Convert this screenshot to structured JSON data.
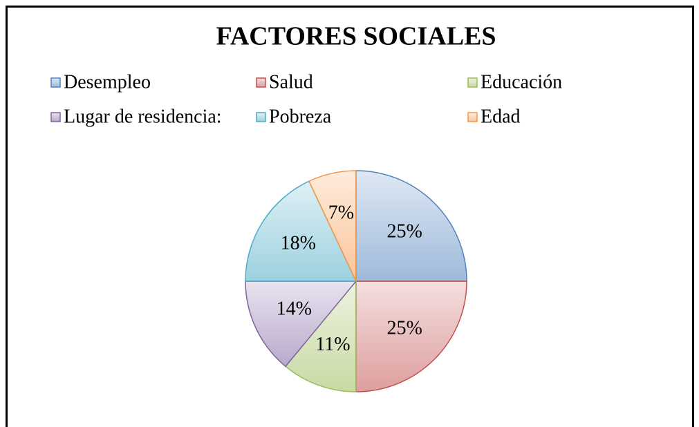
{
  "chart_data": {
    "type": "pie",
    "title": "FACTORES SOCIALES",
    "categories": [
      "Desempleo",
      "Salud",
      "Educación",
      "Lugar de residencia:",
      "Pobreza",
      "Edad"
    ],
    "values": [
      25,
      25,
      11,
      14,
      18,
      7
    ],
    "value_labels": [
      "25%",
      "25%",
      "11%",
      "14%",
      "18%",
      "7%"
    ],
    "colors": [
      "#4f81bd",
      "#c0504d",
      "#9bbb59",
      "#8064a2",
      "#4bacc6",
      "#f79646"
    ],
    "legend": "top"
  }
}
